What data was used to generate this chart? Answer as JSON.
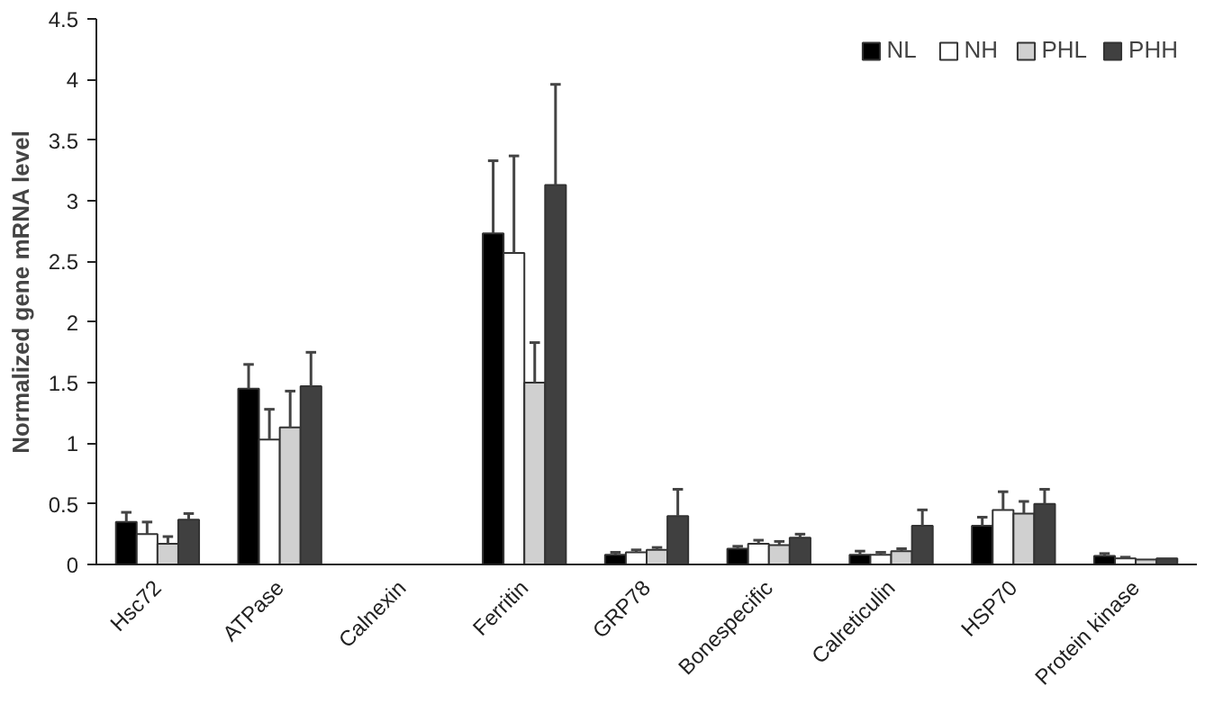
{
  "chart_data": {
    "type": "bar",
    "ylabel": "Normalized gene mRNA level",
    "categories": [
      "Hsc72",
      "ATPase",
      "Calnexin",
      "Ferritin",
      "GRP78",
      "Bonespecific",
      "Calreticulin",
      "HSP70",
      "Protein kinase"
    ],
    "series": [
      {
        "name": "NL",
        "color": "#000000",
        "values": [
          0.35,
          1.45,
          null,
          2.73,
          0.08,
          0.13,
          0.08,
          0.32,
          0.07
        ],
        "errors": [
          [
            0.35,
            0.43
          ],
          [
            1.45,
            1.65
          ],
          null,
          [
            2.73,
            3.33
          ],
          [
            0.08,
            0.1
          ],
          [
            0.13,
            0.15
          ],
          [
            0.08,
            0.11
          ],
          [
            0.32,
            0.39
          ],
          [
            0.07,
            0.09
          ]
        ]
      },
      {
        "name": "NH",
        "color": "#ffffff",
        "values": [
          0.25,
          1.03,
          null,
          2.57,
          0.1,
          0.17,
          0.08,
          0.45,
          0.05
        ],
        "errors": [
          [
            0.25,
            0.35
          ],
          [
            1.03,
            1.28
          ],
          null,
          [
            2.57,
            3.37
          ],
          [
            0.1,
            0.12
          ],
          [
            0.17,
            0.2
          ],
          [
            0.08,
            0.1
          ],
          [
            0.45,
            0.6
          ],
          [
            0.05,
            0.06
          ]
        ]
      },
      {
        "name": "PHL",
        "color": "#d0d0d0",
        "values": [
          0.17,
          1.13,
          null,
          1.5,
          0.12,
          0.16,
          0.11,
          0.42,
          0.04
        ],
        "errors": [
          [
            0.17,
            0.23
          ],
          [
            1.13,
            1.43
          ],
          null,
          [
            1.5,
            1.83
          ],
          [
            0.12,
            0.14
          ],
          [
            0.16,
            0.19
          ],
          [
            0.11,
            0.13
          ],
          [
            0.42,
            0.52
          ],
          null
        ]
      },
      {
        "name": "PHH",
        "color": "#404040",
        "values": [
          0.37,
          1.47,
          null,
          3.13,
          0.4,
          0.22,
          0.32,
          0.5,
          0.05
        ],
        "errors": [
          [
            0.37,
            0.42
          ],
          [
            1.47,
            1.75
          ],
          null,
          [
            3.13,
            3.96
          ],
          [
            0.4,
            0.62
          ],
          [
            0.22,
            0.25
          ],
          [
            0.32,
            0.45
          ],
          [
            0.5,
            0.62
          ],
          null
        ]
      }
    ],
    "ylim": [
      0,
      4.5
    ],
    "yticks": [
      0,
      0.5,
      1,
      1.5,
      2,
      2.5,
      3,
      3.5,
      4,
      4.5
    ],
    "grid": false,
    "legend": "top right"
  }
}
